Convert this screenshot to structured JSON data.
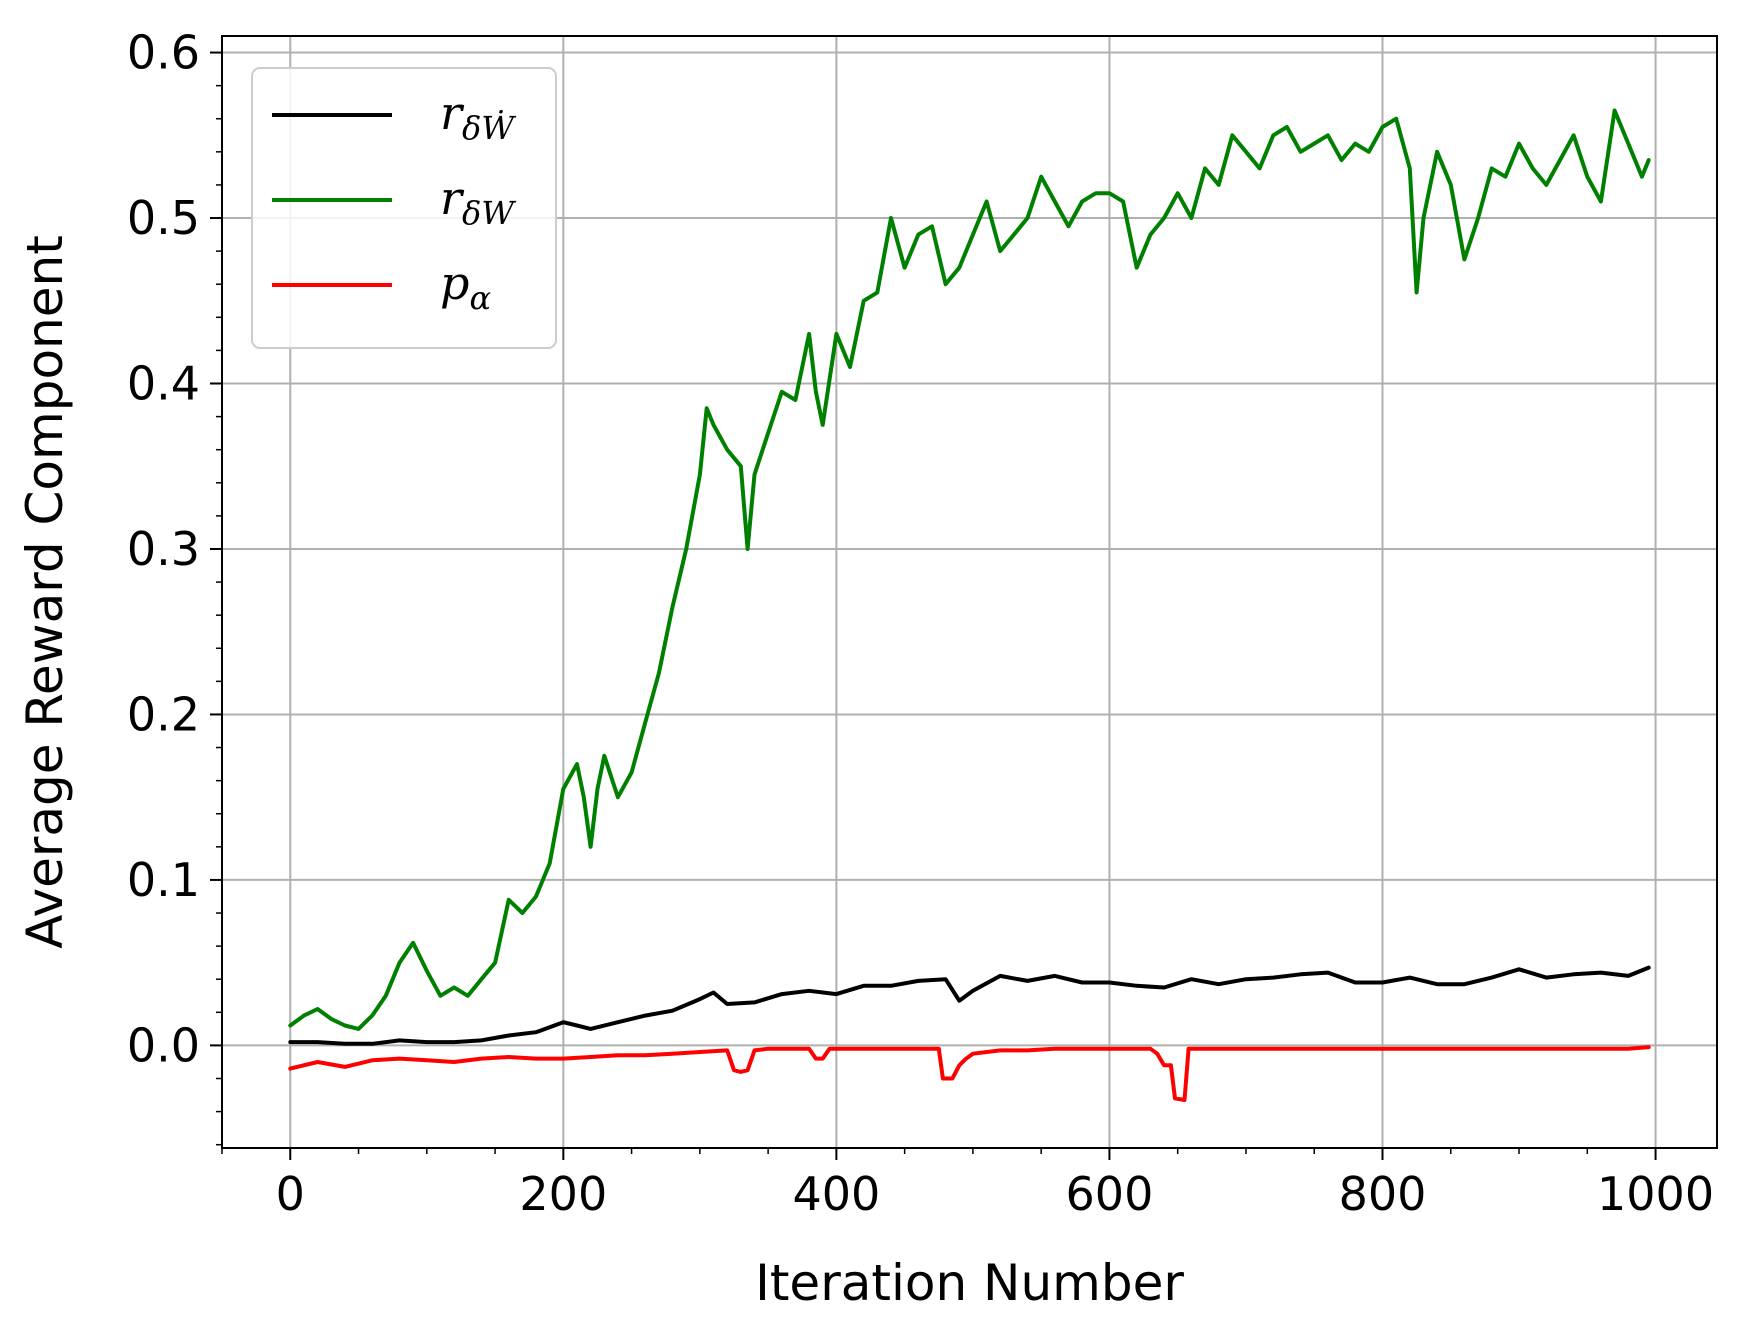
{
  "chart_data": {
    "type": "line",
    "title": "",
    "xlabel": "Iteration Number",
    "ylabel": "Average Reward Component",
    "xlim": [
      -50,
      1045
    ],
    "ylim": [
      -0.062,
      0.61
    ],
    "xticks": [
      0,
      200,
      400,
      600,
      800,
      1000
    ],
    "xtick_labels": [
      "0",
      "200",
      "400",
      "600",
      "800",
      "1000"
    ],
    "yticks": [
      0.0,
      0.1,
      0.2,
      0.3,
      0.4,
      0.5,
      0.6
    ],
    "ytick_labels": [
      "0.0",
      "0.1",
      "0.2",
      "0.3",
      "0.4",
      "0.5",
      "0.6"
    ],
    "grid": true,
    "legend_position": "top-left",
    "series": [
      {
        "name": "r_{δẆ}",
        "label_main": "r",
        "label_sub": "δẆ",
        "color": "#000000",
        "x": [
          0,
          20,
          40,
          60,
          80,
          100,
          120,
          140,
          160,
          180,
          200,
          210,
          220,
          240,
          260,
          280,
          300,
          310,
          320,
          340,
          360,
          380,
          400,
          420,
          440,
          460,
          480,
          490,
          500,
          520,
          540,
          560,
          580,
          600,
          620,
          640,
          660,
          680,
          700,
          720,
          740,
          760,
          780,
          800,
          820,
          840,
          860,
          880,
          900,
          920,
          940,
          960,
          980,
          995
        ],
        "y": [
          0.002,
          0.002,
          0.001,
          0.001,
          0.003,
          0.002,
          0.002,
          0.003,
          0.006,
          0.008,
          0.014,
          0.012,
          0.01,
          0.014,
          0.018,
          0.021,
          0.028,
          0.032,
          0.025,
          0.026,
          0.031,
          0.033,
          0.031,
          0.036,
          0.036,
          0.039,
          0.04,
          0.027,
          0.033,
          0.042,
          0.039,
          0.042,
          0.038,
          0.038,
          0.036,
          0.035,
          0.04,
          0.037,
          0.04,
          0.041,
          0.043,
          0.044,
          0.038,
          0.038,
          0.041,
          0.037,
          0.037,
          0.041,
          0.046,
          0.041,
          0.043,
          0.044,
          0.042,
          0.047
        ]
      },
      {
        "name": "r_{δW}",
        "label_main": "r",
        "label_sub": "δW",
        "color": "#008000",
        "x": [
          0,
          10,
          20,
          30,
          40,
          50,
          60,
          70,
          80,
          90,
          100,
          110,
          120,
          130,
          140,
          150,
          160,
          170,
          180,
          190,
          200,
          210,
          215,
          220,
          225,
          230,
          240,
          250,
          260,
          270,
          280,
          290,
          300,
          305,
          310,
          320,
          330,
          335,
          340,
          350,
          360,
          370,
          380,
          385,
          390,
          400,
          410,
          420,
          430,
          440,
          450,
          460,
          470,
          480,
          490,
          500,
          510,
          520,
          530,
          540,
          550,
          560,
          570,
          580,
          590,
          600,
          610,
          620,
          630,
          640,
          650,
          660,
          670,
          680,
          690,
          700,
          710,
          720,
          730,
          740,
          750,
          760,
          770,
          780,
          790,
          800,
          810,
          820,
          825,
          830,
          840,
          850,
          860,
          870,
          880,
          890,
          900,
          910,
          920,
          930,
          940,
          950,
          960,
          970,
          980,
          990,
          995
        ],
        "y": [
          0.012,
          0.018,
          0.022,
          0.016,
          0.012,
          0.01,
          0.018,
          0.03,
          0.05,
          0.062,
          0.045,
          0.03,
          0.035,
          0.03,
          0.04,
          0.05,
          0.088,
          0.08,
          0.09,
          0.11,
          0.155,
          0.17,
          0.15,
          0.12,
          0.155,
          0.175,
          0.15,
          0.165,
          0.195,
          0.225,
          0.265,
          0.3,
          0.345,
          0.385,
          0.375,
          0.36,
          0.35,
          0.3,
          0.345,
          0.37,
          0.395,
          0.39,
          0.43,
          0.395,
          0.375,
          0.43,
          0.41,
          0.45,
          0.455,
          0.5,
          0.47,
          0.49,
          0.495,
          0.46,
          0.47,
          0.49,
          0.51,
          0.48,
          0.49,
          0.5,
          0.525,
          0.51,
          0.495,
          0.51,
          0.515,
          0.515,
          0.51,
          0.47,
          0.49,
          0.5,
          0.515,
          0.5,
          0.53,
          0.52,
          0.55,
          0.54,
          0.53,
          0.55,
          0.555,
          0.54,
          0.545,
          0.55,
          0.535,
          0.545,
          0.54,
          0.555,
          0.56,
          0.53,
          0.455,
          0.5,
          0.54,
          0.52,
          0.475,
          0.5,
          0.53,
          0.525,
          0.545,
          0.53,
          0.52,
          0.535,
          0.55,
          0.525,
          0.51,
          0.565,
          0.545,
          0.525,
          0.535
        ]
      },
      {
        "name": "p_α",
        "label_main": "p",
        "label_sub": "α",
        "color": "#ff0000",
        "x": [
          0,
          20,
          40,
          60,
          80,
          100,
          120,
          140,
          160,
          180,
          200,
          220,
          240,
          260,
          280,
          300,
          320,
          325,
          330,
          335,
          340,
          350,
          360,
          380,
          385,
          390,
          395,
          400,
          420,
          440,
          460,
          475,
          478,
          485,
          490,
          495,
          500,
          520,
          540,
          560,
          580,
          600,
          620,
          630,
          635,
          640,
          645,
          648,
          655,
          658,
          665,
          680,
          700,
          720,
          740,
          760,
          780,
          800,
          820,
          840,
          860,
          880,
          900,
          920,
          940,
          960,
          980,
          995
        ],
        "y": [
          -0.014,
          -0.01,
          -0.013,
          -0.009,
          -0.008,
          -0.009,
          -0.01,
          -0.008,
          -0.007,
          -0.008,
          -0.008,
          -0.007,
          -0.006,
          -0.006,
          -0.005,
          -0.004,
          -0.003,
          -0.015,
          -0.016,
          -0.015,
          -0.003,
          -0.002,
          -0.002,
          -0.002,
          -0.008,
          -0.008,
          -0.002,
          -0.002,
          -0.002,
          -0.002,
          -0.002,
          -0.002,
          -0.02,
          -0.02,
          -0.012,
          -0.008,
          -0.005,
          -0.003,
          -0.003,
          -0.002,
          -0.002,
          -0.002,
          -0.002,
          -0.002,
          -0.005,
          -0.012,
          -0.012,
          -0.032,
          -0.033,
          -0.002,
          -0.002,
          -0.002,
          -0.002,
          -0.002,
          -0.002,
          -0.002,
          -0.002,
          -0.002,
          -0.002,
          -0.002,
          -0.002,
          -0.002,
          -0.002,
          -0.002,
          -0.002,
          -0.002,
          -0.002,
          -0.001
        ]
      }
    ]
  }
}
